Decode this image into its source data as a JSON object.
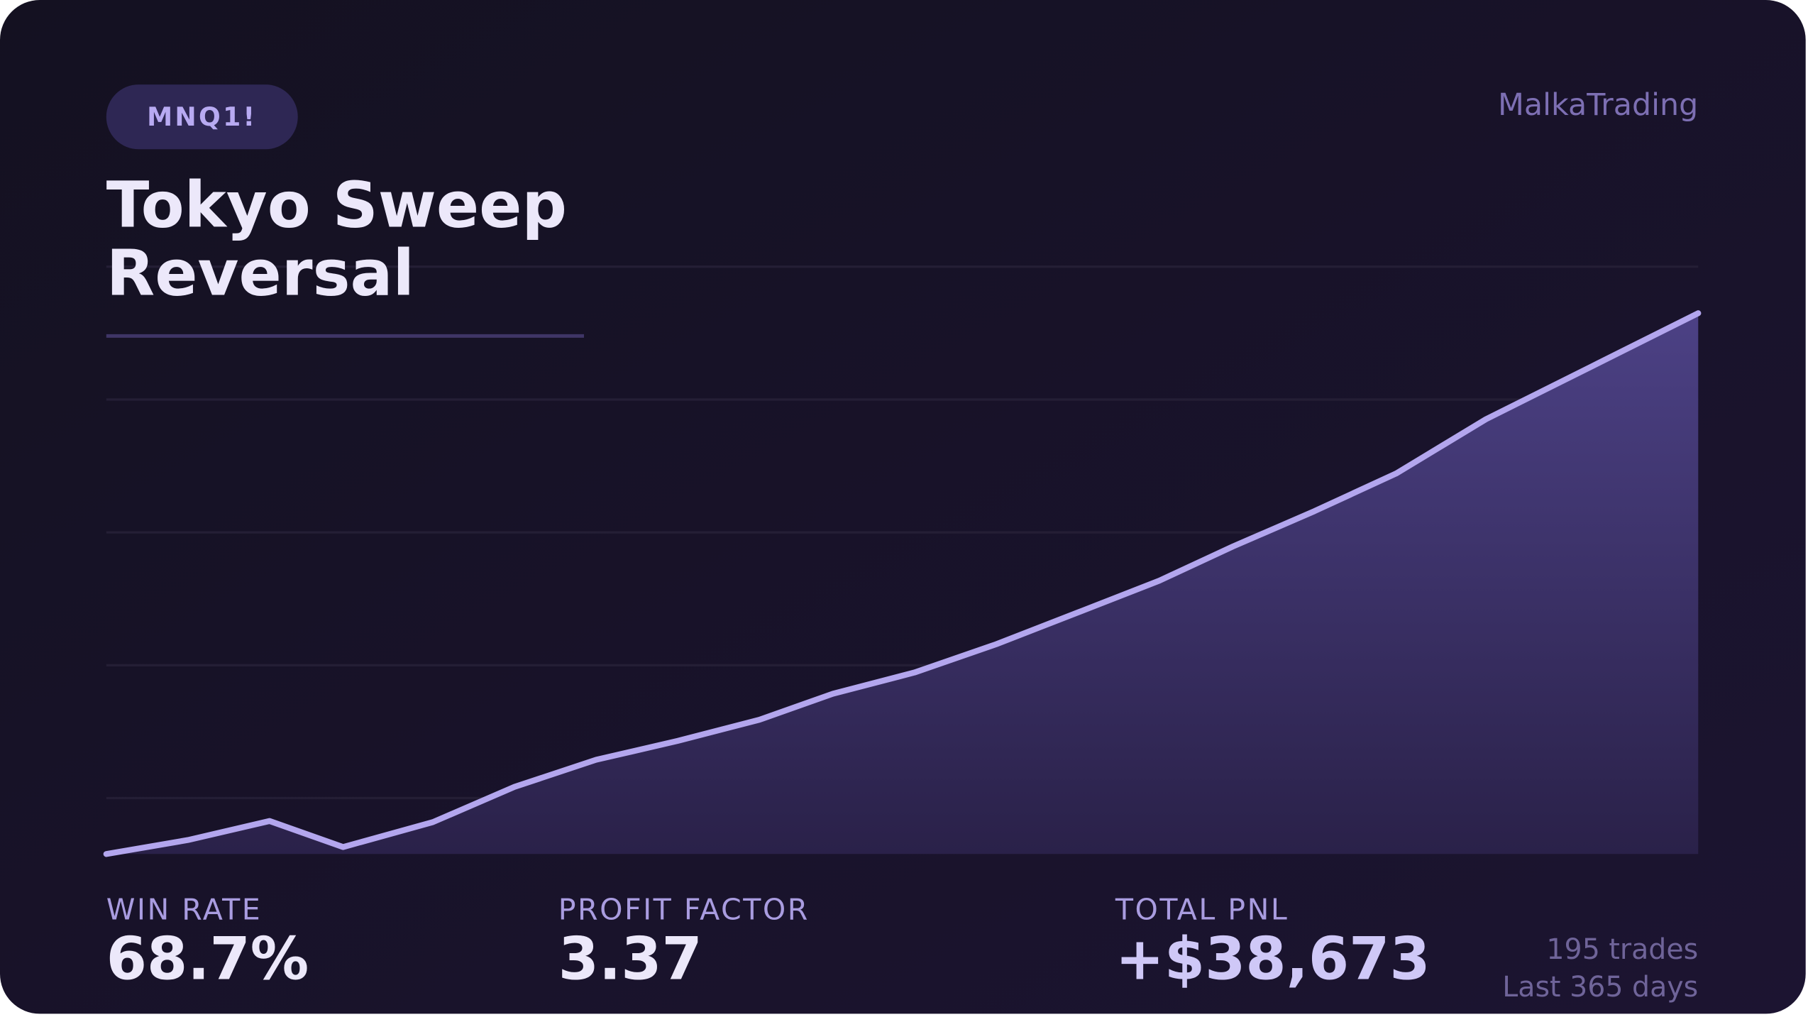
{
  "badge": "MNQ1!",
  "brand": "MalkaTrading",
  "chart_data": {
    "type": "area",
    "title": "Tokyo Sweep Reversal",
    "x": [
      0,
      10,
      20,
      29,
      40,
      50,
      60,
      70,
      80,
      89,
      99,
      109,
      119,
      129,
      138,
      148,
      158,
      169,
      182,
      195
    ],
    "series": [
      {
        "color": "#b3a6ee",
        "values": [
          0,
          1000,
          2360,
          500,
          2280,
          4800,
          6740,
          8090,
          9600,
          11460,
          12980,
          15000,
          17270,
          19550,
          21990,
          24520,
          27210,
          31090,
          34880,
          38673
        ]
      }
    ],
    "xlim": [
      0,
      195
    ],
    "ylim": [
      0,
      42000
    ],
    "yticks": [
      4000,
      13500,
      23000,
      32500,
      42000
    ],
    "grid": true
  },
  "stats": [
    {
      "label": "WIN RATE",
      "value": 68.7,
      "value_label": "68.7%"
    },
    {
      "label": "PROFIT FACTOR",
      "value": 3.37
    },
    {
      "label": "TOTAL PNL",
      "value": 38673,
      "value_label": "+$38,673"
    }
  ],
  "footnote": [
    "195 trades",
    "Last 365 days"
  ]
}
